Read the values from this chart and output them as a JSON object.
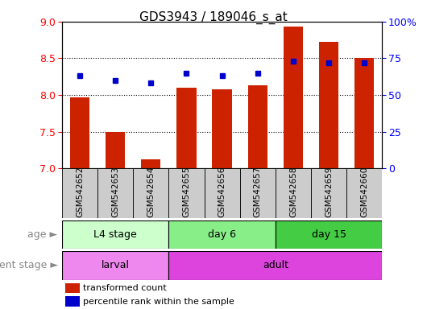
{
  "title": "GDS3943 / 189046_s_at",
  "samples": [
    "GSM542652",
    "GSM542653",
    "GSM542654",
    "GSM542655",
    "GSM542656",
    "GSM542657",
    "GSM542658",
    "GSM542659",
    "GSM542660"
  ],
  "transformed_count": [
    7.97,
    7.5,
    7.12,
    8.1,
    8.08,
    8.13,
    8.93,
    8.72,
    8.5
  ],
  "percentile_rank": [
    63,
    60,
    58,
    65,
    63,
    65,
    73,
    72,
    72
  ],
  "ylim_left": [
    7.0,
    9.0
  ],
  "ylim_right": [
    0,
    100
  ],
  "yticks_left": [
    7.0,
    7.5,
    8.0,
    8.5,
    9.0
  ],
  "yticks_right": [
    0,
    25,
    50,
    75,
    100
  ],
  "ytick_labels_right": [
    "0",
    "25",
    "50",
    "75",
    "100%"
  ],
  "bar_color": "#cc2200",
  "marker_color": "#0000cc",
  "bar_bottom": 7.0,
  "age_groups": [
    {
      "label": "L4 stage",
      "start": 0,
      "end": 3,
      "color": "#ccffcc"
    },
    {
      "label": "day 6",
      "start": 3,
      "end": 6,
      "color": "#88ee88"
    },
    {
      "label": "day 15",
      "start": 6,
      "end": 9,
      "color": "#44cc44"
    }
  ],
  "dev_groups": [
    {
      "label": "larval",
      "start": 0,
      "end": 3,
      "color": "#ee88ee"
    },
    {
      "label": "adult",
      "start": 3,
      "end": 9,
      "color": "#dd44dd"
    }
  ],
  "age_label": "age",
  "dev_label": "development stage",
  "legend_items": [
    {
      "label": "transformed count",
      "color": "#cc2200"
    },
    {
      "label": "percentile rank within the sample",
      "color": "#0000cc"
    }
  ],
  "background_color": "#ffffff",
  "tick_bg_color": "#cccccc",
  "grid_dotted_at": [
    7.5,
    8.0,
    8.5
  ]
}
